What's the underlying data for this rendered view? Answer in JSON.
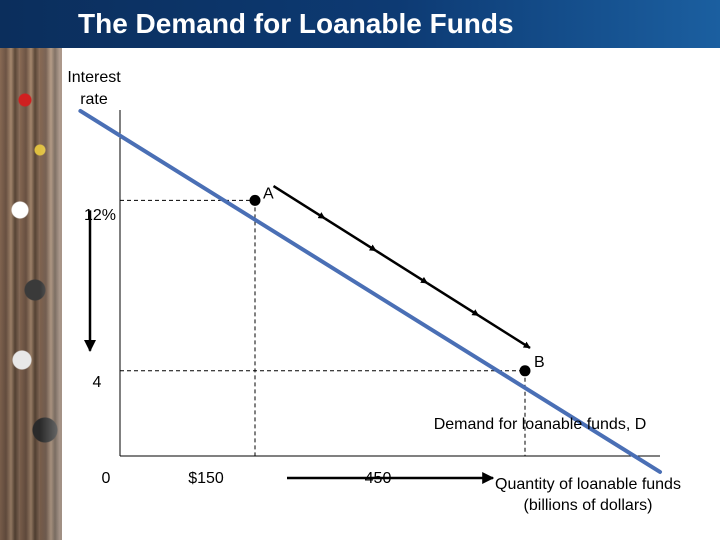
{
  "slide": {
    "title": "The Demand for Loanable Funds"
  },
  "colors": {
    "title_bar": "#0d3a73",
    "demand_line": "#4a6fb5",
    "arrow": "#000000"
  },
  "chart_data": {
    "type": "line",
    "title": "",
    "ylabel_lines": [
      "Interest",
      "rate"
    ],
    "xlabel_lines": [
      "Quantity of loanable funds",
      "(billions of dollars)"
    ],
    "y_tick_labels": [
      {
        "value": 12,
        "label": "12%"
      },
      {
        "value": 4,
        "label": "4"
      }
    ],
    "x_tick_labels": [
      {
        "value": 0,
        "label": "0"
      },
      {
        "value": 150,
        "label": "$150"
      },
      {
        "value": 450,
        "label": "450"
      }
    ],
    "xlim": [
      0,
      600
    ],
    "ylim": [
      0,
      20
    ],
    "grid": false,
    "series": [
      {
        "name": "Demand for loanable funds, D",
        "x": [
          -44,
          600
        ],
        "y": [
          16.2,
          -0.75
        ]
      }
    ],
    "points": [
      {
        "label": "A",
        "x": 150,
        "y": 12
      },
      {
        "label": "B",
        "x": 450,
        "y": 4
      }
    ],
    "movement": {
      "from": "A",
      "to": "B"
    }
  }
}
